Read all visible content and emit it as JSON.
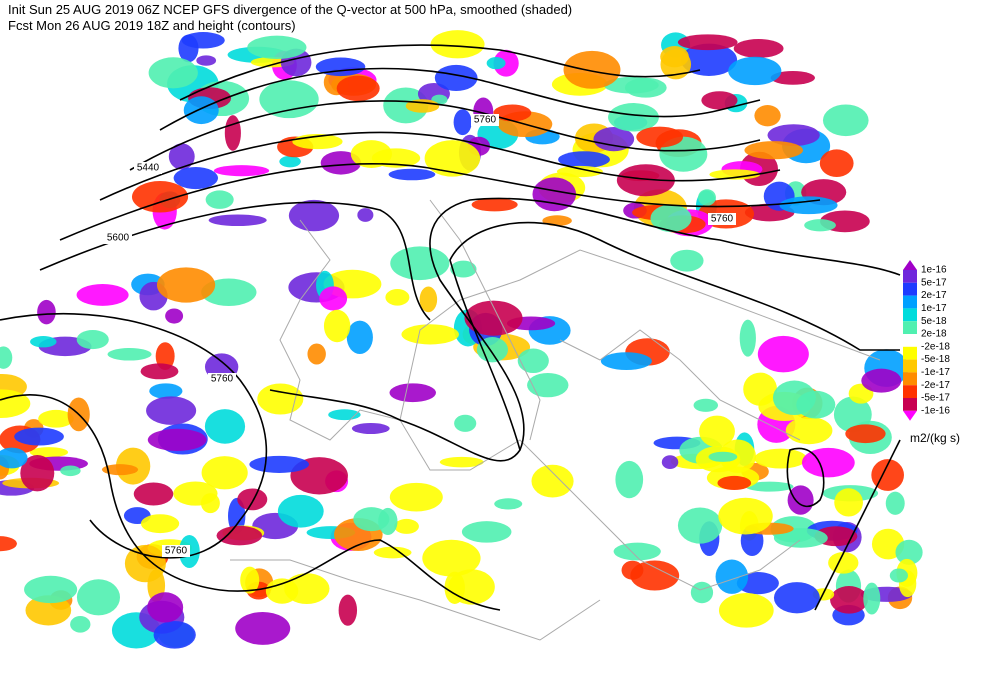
{
  "header": {
    "line1": "Init  Sun 25 AUG 2019 06Z  NCEP GFS divergence of the Q-vector at 500 hPa, smoothed (shaded)",
    "line2": "Fcst Mon 26 AUG 2019 18Z  and height (contours)"
  },
  "contour_labels": [
    "5440",
    "5600",
    "5760",
    "5760",
    "5760",
    "5760"
  ],
  "colorbar": {
    "labels": [
      "1e-16",
      "5e-17",
      "2e-17",
      "1e-17",
      "5e-18",
      "2e-18",
      "-2e-18",
      "-5e-18",
      "-1e-17",
      "-2e-17",
      "-5e-17",
      "-1e-16"
    ],
    "unit": "m2/(kg s)"
  }
}
